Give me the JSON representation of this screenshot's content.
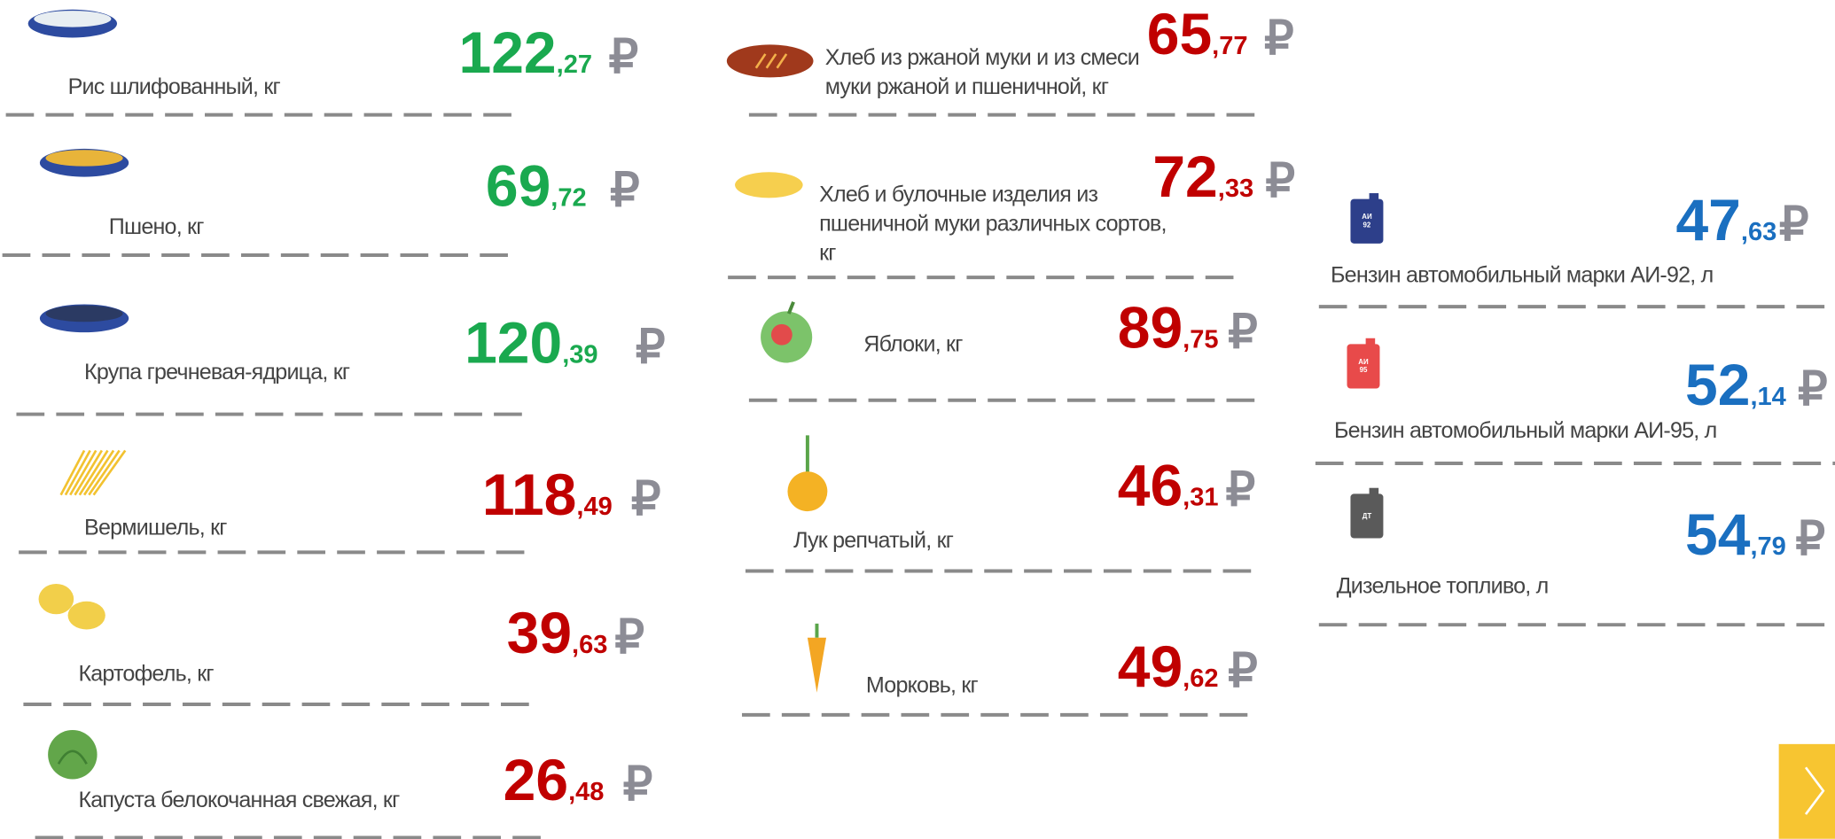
{
  "currency": "₽",
  "items": [
    {
      "name": [
        "Рис шлифованный, кг"
      ],
      "main": "122",
      "fraction": ",27",
      "color": "#1aa94f"
    },
    {
      "name": [
        "Пшено, кг"
      ],
      "main": "69",
      "fraction": ",72",
      "color": "#1aa94f"
    },
    {
      "name": [
        "Крупа гречневая-ядрица, кг"
      ],
      "main": "120",
      "fraction": ",39",
      "color": "#1aa94f"
    },
    {
      "name": [
        "Вермишель, кг"
      ],
      "main": "118",
      "fraction": ",49",
      "color": "#c00000"
    },
    {
      "name": [
        "Картофель, кг"
      ],
      "main": "39",
      "fraction": ",63",
      "color": "#c00000"
    },
    {
      "name": [
        "Капуста белокочанная свежая, кг"
      ],
      "main": "26",
      "fraction": ",48",
      "color": "#c00000"
    },
    {
      "name": [
        "Хлеб из ржаной муки и из смеси",
        "муки ржаной и пшеничной, кг"
      ],
      "main": "65",
      "fraction": ",77",
      "color": "#c00000"
    },
    {
      "name": [
        "Хлеб и булочные изделия из",
        "пшеничной муки различных сортов,",
        "кг"
      ],
      "main": "72",
      "fraction": ",33",
      "color": "#c00000"
    },
    {
      "name": [
        "Яблоки, кг"
      ],
      "main": "89",
      "fraction": ",75",
      "color": "#c00000"
    },
    {
      "name": [
        "Лук репчатый, кг"
      ],
      "main": "46",
      "fraction": ",31",
      "color": "#c00000"
    },
    {
      "name": [
        "Морковь, кг"
      ],
      "main": "49",
      "fraction": ",62",
      "color": "#c00000"
    },
    {
      "name": [
        "Бензин автомобильный марки АИ-92, л"
      ],
      "main": "47",
      "fraction": ",63",
      "color": "#1a6fc0",
      "can_label": [
        "АИ",
        "92"
      ]
    },
    {
      "name": [
        "Бензин автомобильный марки АИ-95, л"
      ],
      "main": "52",
      "fraction": ",14",
      "color": "#1a6fc0",
      "can_label": [
        "АИ",
        "95"
      ]
    },
    {
      "name": [
        "Дизельное топливо, л"
      ],
      "main": "54",
      "fraction": ",79",
      "color": "#1a6fc0",
      "can_label": [
        "ДТ"
      ]
    }
  ]
}
